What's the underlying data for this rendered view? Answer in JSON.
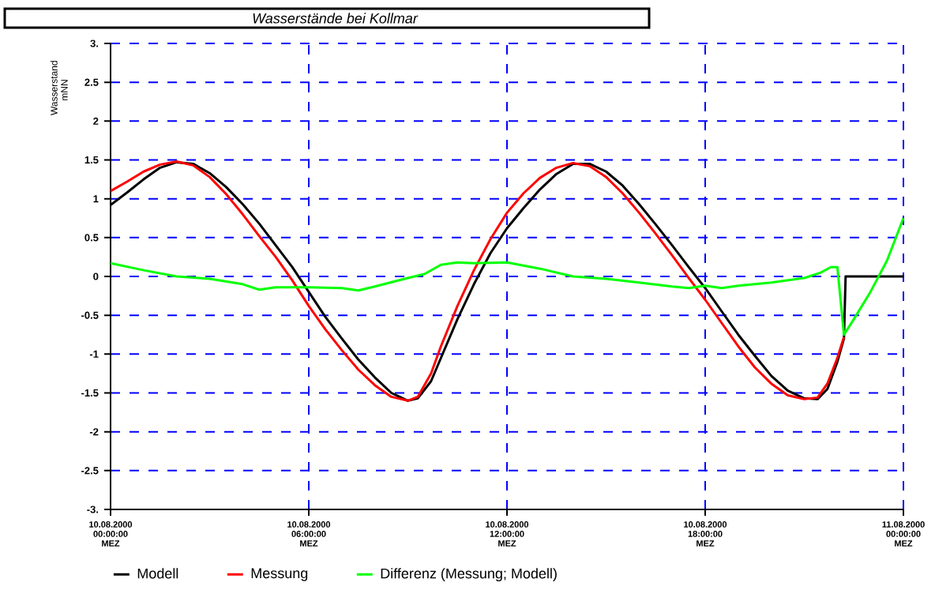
{
  "chart_data": {
    "type": "line",
    "title": "Wasserstände bei Kollmar",
    "ylabel": "Wasserstand mNN",
    "xlim": [
      "2000-08-10T00:00",
      "2000-08-11T00:00"
    ],
    "ylim": [
      -3,
      3
    ],
    "xticks": [
      {
        "value": "2000-08-10T00:00",
        "label": "10.08.2000 00:00:00 MEZ"
      },
      {
        "value": "2000-08-10T06:00",
        "label": "10.08.2000 06:00:00 MEZ"
      },
      {
        "value": "2000-08-10T12:00",
        "label": "10.08.2000 12:00:00 MEZ"
      },
      {
        "value": "2000-08-10T18:00",
        "label": "10.08.2000 18:00:00 MEZ"
      },
      {
        "value": "2000-08-11T00:00",
        "label": "11.08.2000 00:00:00 MEZ"
      }
    ],
    "yticks": [
      {
        "value": 3,
        "label": "3."
      },
      2.5,
      2,
      1.5,
      1,
      0.5,
      0,
      -0.5,
      -1,
      -1.5,
      -2,
      -2.5,
      {
        "value": -3,
        "label": "-3."
      }
    ],
    "grid": true,
    "legend": "bottom left",
    "series": [
      {
        "name": "Modell",
        "color": "#000000",
        "x": [
          "2000-08-10T00:00",
          "2000-08-10T00:30",
          "2000-08-10T01:00",
          "2000-08-10T01:30",
          "2000-08-10T02:00",
          "2000-08-10T02:30",
          "2000-08-10T03:00",
          "2000-08-10T03:30",
          "2000-08-10T04:00",
          "2000-08-10T04:30",
          "2000-08-10T05:00",
          "2000-08-10T05:30",
          "2000-08-10T06:00",
          "2000-08-10T06:30",
          "2000-08-10T07:00",
          "2000-08-10T07:30",
          "2000-08-10T08:00",
          "2000-08-10T08:30",
          "2000-08-10T09:00",
          "2000-08-10T09:18",
          "2000-08-10T09:42",
          "2000-08-10T10:00",
          "2000-08-10T10:30",
          "2000-08-10T11:00",
          "2000-08-10T11:30",
          "2000-08-10T12:00",
          "2000-08-10T12:30",
          "2000-08-10T13:00",
          "2000-08-10T13:30",
          "2000-08-10T14:00",
          "2000-08-10T14:30",
          "2000-08-10T15:00",
          "2000-08-10T15:30",
          "2000-08-10T16:00",
          "2000-08-10T16:30",
          "2000-08-10T17:00",
          "2000-08-10T17:30",
          "2000-08-10T18:00",
          "2000-08-10T18:30",
          "2000-08-10T19:00",
          "2000-08-10T19:30",
          "2000-08-10T20:00",
          "2000-08-10T20:30",
          "2000-08-10T21:00",
          "2000-08-10T21:24",
          "2000-08-10T21:42",
          "2000-08-10T22:00",
          "2000-08-10T22:12",
          "2000-08-10T22:15",
          "2000-08-11T00:00"
        ],
        "values": [
          0.92,
          1.08,
          1.25,
          1.4,
          1.47,
          1.45,
          1.33,
          1.15,
          0.93,
          0.68,
          0.4,
          0.12,
          -0.2,
          -0.52,
          -0.8,
          -1.07,
          -1.3,
          -1.5,
          -1.6,
          -1.57,
          -1.35,
          -1.05,
          -0.55,
          -0.1,
          0.3,
          0.62,
          0.88,
          1.12,
          1.32,
          1.45,
          1.45,
          1.35,
          1.17,
          0.93,
          0.67,
          0.4,
          0.12,
          -0.15,
          -0.45,
          -0.75,
          -1.02,
          -1.28,
          -1.47,
          -1.57,
          -1.58,
          -1.45,
          -1.1,
          -0.8,
          0,
          0
        ]
      },
      {
        "name": "Messung",
        "color": "#ff0000",
        "x": [
          "2000-08-10T00:00",
          "2000-08-10T00:30",
          "2000-08-10T01:00",
          "2000-08-10T01:30",
          "2000-08-10T02:00",
          "2000-08-10T02:30",
          "2000-08-10T03:00",
          "2000-08-10T03:30",
          "2000-08-10T04:00",
          "2000-08-10T04:30",
          "2000-08-10T05:00",
          "2000-08-10T05:30",
          "2000-08-10T06:00",
          "2000-08-10T06:30",
          "2000-08-10T07:00",
          "2000-08-10T07:30",
          "2000-08-10T08:00",
          "2000-08-10T08:30",
          "2000-08-10T09:00",
          "2000-08-10T09:18",
          "2000-08-10T09:42",
          "2000-08-10T10:00",
          "2000-08-10T10:30",
          "2000-08-10T11:00",
          "2000-08-10T11:30",
          "2000-08-10T12:00",
          "2000-08-10T12:30",
          "2000-08-10T13:00",
          "2000-08-10T13:30",
          "2000-08-10T14:00",
          "2000-08-10T14:30",
          "2000-08-10T15:00",
          "2000-08-10T15:30",
          "2000-08-10T16:00",
          "2000-08-10T16:30",
          "2000-08-10T17:00",
          "2000-08-10T17:30",
          "2000-08-10T18:00",
          "2000-08-10T18:30",
          "2000-08-10T19:00",
          "2000-08-10T19:30",
          "2000-08-10T20:00",
          "2000-08-10T20:30",
          "2000-08-10T21:00",
          "2000-08-10T21:24",
          "2000-08-10T21:42",
          "2000-08-10T22:00",
          "2000-08-10T22:12"
        ],
        "values": [
          1.1,
          1.22,
          1.35,
          1.44,
          1.48,
          1.43,
          1.28,
          1.06,
          0.8,
          0.52,
          0.25,
          -0.05,
          -0.38,
          -0.68,
          -0.95,
          -1.2,
          -1.4,
          -1.55,
          -1.6,
          -1.55,
          -1.25,
          -0.9,
          -0.38,
          0.08,
          0.48,
          0.82,
          1.07,
          1.27,
          1.4,
          1.46,
          1.42,
          1.28,
          1.07,
          0.82,
          0.55,
          0.27,
          -0.02,
          -0.3,
          -0.6,
          -0.9,
          -1.17,
          -1.38,
          -1.53,
          -1.58,
          -1.56,
          -1.38,
          -1.05,
          -0.78
        ]
      },
      {
        "name": "Differenz (Messung; Modell)",
        "color": "#00ff00",
        "x": [
          "2000-08-10T00:00",
          "2000-08-10T01:00",
          "2000-08-10T02:00",
          "2000-08-10T03:00",
          "2000-08-10T04:00",
          "2000-08-10T04:30",
          "2000-08-10T05:00",
          "2000-08-10T06:00",
          "2000-08-10T07:00",
          "2000-08-10T07:30",
          "2000-08-10T08:00",
          "2000-08-10T09:00",
          "2000-08-10T09:30",
          "2000-08-10T10:00",
          "2000-08-10T10:30",
          "2000-08-10T11:00",
          "2000-08-10T12:00",
          "2000-08-10T13:00",
          "2000-08-10T14:00",
          "2000-08-10T15:00",
          "2000-08-10T16:00",
          "2000-08-10T17:00",
          "2000-08-10T17:30",
          "2000-08-10T18:00",
          "2000-08-10T18:30",
          "2000-08-10T19:00",
          "2000-08-10T20:00",
          "2000-08-10T21:00",
          "2000-08-10T21:30",
          "2000-08-10T21:48",
          "2000-08-10T22:00",
          "2000-08-10T22:12",
          "2000-08-10T22:30",
          "2000-08-10T23:00",
          "2000-08-10T23:30",
          "2000-08-11T00:00"
        ],
        "values": [
          0.17,
          0.08,
          0,
          -0.03,
          -0.1,
          -0.17,
          -0.14,
          -0.14,
          -0.15,
          -0.18,
          -0.13,
          -0.02,
          0.03,
          0.15,
          0.18,
          0.17,
          0.18,
          0.1,
          0,
          -0.03,
          -0.08,
          -0.13,
          -0.15,
          -0.12,
          -0.15,
          -0.12,
          -0.08,
          -0.02,
          0.05,
          0.12,
          0.12,
          -0.75,
          -0.55,
          -0.2,
          0.2,
          0.75
        ]
      }
    ]
  }
}
